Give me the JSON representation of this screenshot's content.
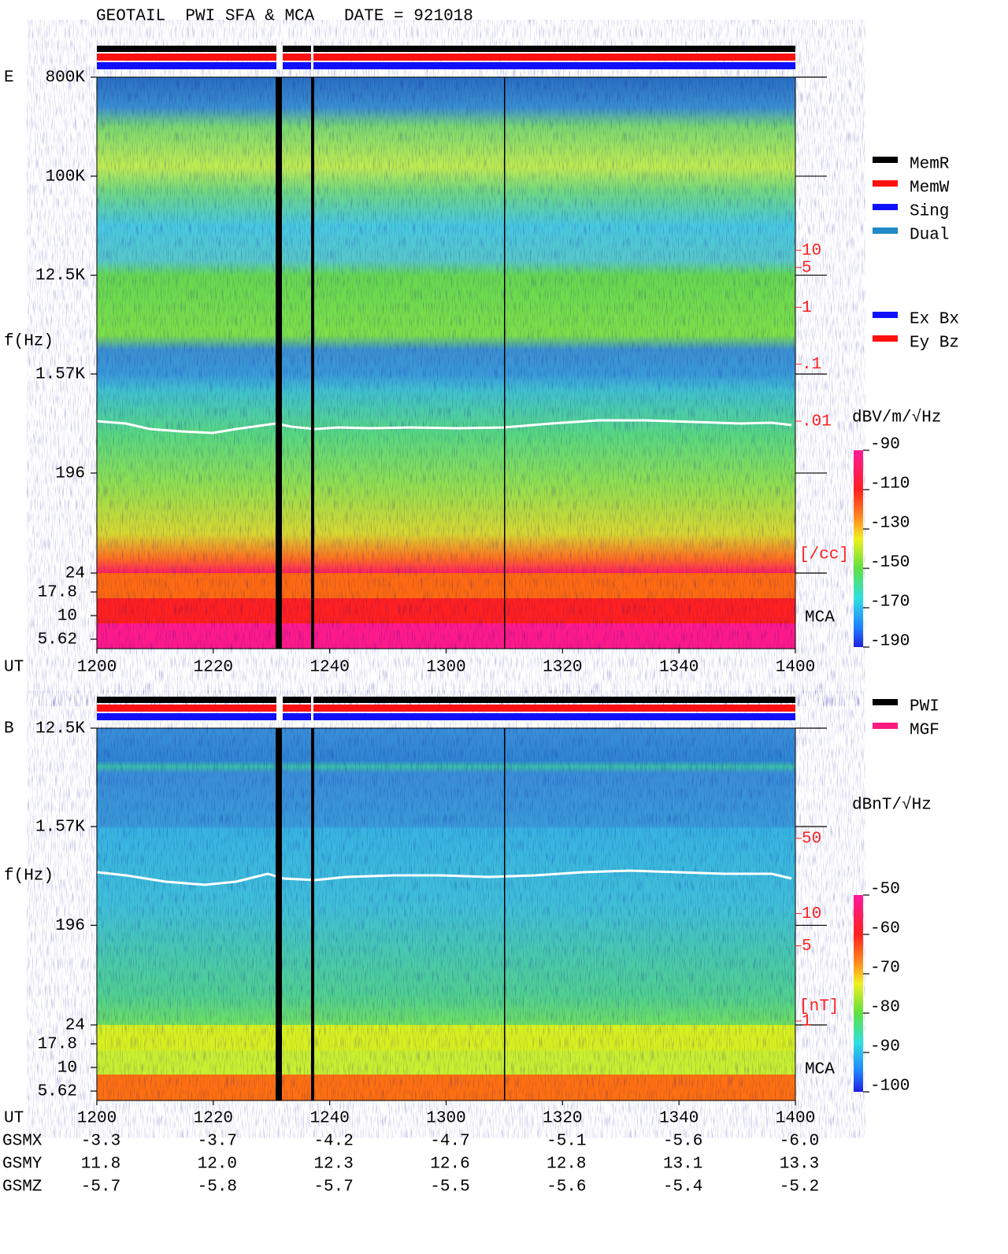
{
  "chart_data": [
    {
      "type": "spectrogram",
      "title": "GEOTAIL  PWI SFA & MCA   DATE = 921018",
      "panel_label": "E",
      "ylabel": "f(Hz)",
      "xlabel": "UT",
      "categories": [
        "1200",
        "1220",
        "1240",
        "1300",
        "1320",
        "1340",
        "1400"
      ],
      "yscale": "log",
      "ylim": [
        24,
        800000
      ],
      "yticks": [
        {
          "value": 800000,
          "label": "800K"
        },
        {
          "value": 100000,
          "label": "100K"
        },
        {
          "value": 12500,
          "label": "12.5K"
        },
        {
          "value": 1570,
          "label": "1.57K"
        },
        196,
        24
      ],
      "mca_label": "MCA",
      "mca_yticks": [
        17.8,
        10,
        5.62
      ],
      "density_ticks": [
        10,
        5,
        1,
        {
          "value": 0.1,
          "label": ".1"
        },
        {
          "value": 0.01,
          "label": ".01"
        }
      ],
      "density_unit": "[/cc]",
      "colorbar": {
        "label": "dBV/m/√Hz",
        "lim": [
          -90,
          -190
        ],
        "ticks": [
          -90,
          -110,
          -130,
          -150,
          -170,
          -190
        ]
      },
      "legends": [
        [
          {
            "name": "MemR",
            "color": "#000000"
          },
          {
            "name": "MemW",
            "color": "#ff1010"
          },
          {
            "name": "Sing",
            "color": "#1010ff"
          },
          {
            "name": "Dual",
            "color": "#2088c8"
          }
        ],
        [
          {
            "name": "Ex Bx",
            "color": "#1010ff"
          },
          {
            "name": "Ey Bz",
            "color": "#ff1010"
          }
        ]
      ]
    },
    {
      "type": "spectrogram",
      "panel_label": "B",
      "ylabel": "f(Hz)",
      "xlabel": "UT",
      "categories": [
        "1200",
        "1220",
        "1240",
        "1300",
        "1320",
        "1340",
        "1400"
      ],
      "yscale": "log",
      "ylim": [
        24,
        12500
      ],
      "yticks": [
        {
          "value": 12500,
          "label": "12.5K"
        },
        {
          "value": 1570,
          "label": "1.57K"
        },
        196,
        24
      ],
      "mca_label": "MCA",
      "mca_yticks": [
        17.8,
        10,
        5.62
      ],
      "density_ticks": [
        50,
        10,
        5,
        1
      ],
      "density_unit": "[nT]",
      "colorbar": {
        "label": "dBnT/√Hz",
        "lim": [
          -50,
          -100
        ],
        "ticks": [
          -50,
          -60,
          -70,
          -80,
          -90,
          -100
        ]
      },
      "legends": [
        [
          {
            "name": "PWI",
            "color": "#000000"
          },
          {
            "name": "MGF",
            "color": "#ff1a80"
          }
        ]
      ]
    }
  ],
  "orbit": {
    "rows": [
      {
        "name": "GSMX",
        "values": [
          "-3.3",
          "-3.7",
          "-4.2",
          "-4.7",
          "-5.1",
          "-5.6",
          "-6.0"
        ]
      },
      {
        "name": "GSMY",
        "values": [
          "11.8",
          "12.0",
          "12.3",
          "12.6",
          "12.8",
          "13.1",
          "13.3"
        ]
      },
      {
        "name": "GSMZ",
        "values": [
          "-5.7",
          "-5.8",
          "-5.7",
          "-5.5",
          "-5.6",
          "-5.4",
          "-5.2"
        ]
      }
    ]
  }
}
